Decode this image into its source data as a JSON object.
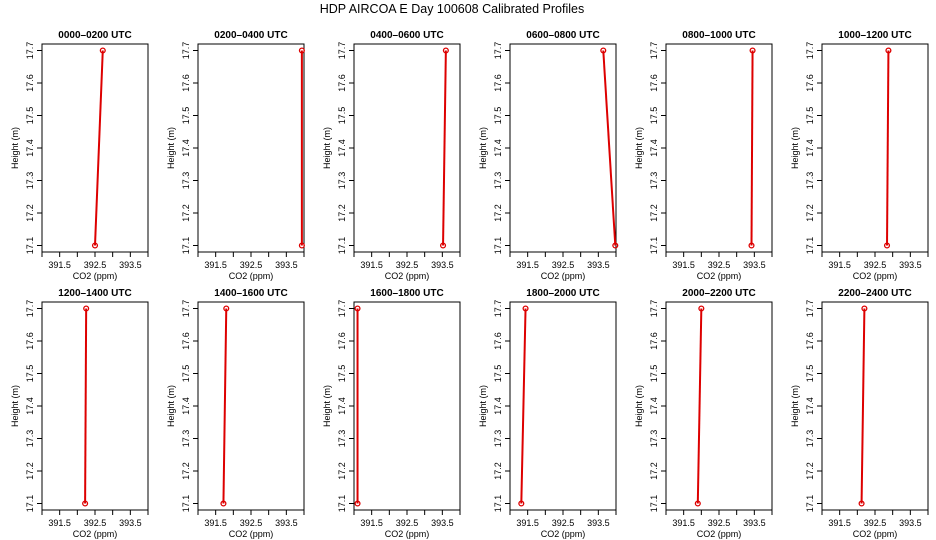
{
  "figure_title": "HDP AIRCOA E  Day 100608  Calibrated Profiles",
  "colors": {
    "profile": "#dd0000",
    "axis": "#000000",
    "background": "#ffffff"
  },
  "chart_data": [
    {
      "type": "line",
      "title": "0000–0200 UTC",
      "xlabel": "CO2 (ppm)",
      "ylabel": "Height (m)",
      "xlim": [
        391.0,
        394.0
      ],
      "ylim": [
        17.08,
        17.72
      ],
      "xticks": [
        "391.5",
        "392.5",
        "393.5"
      ],
      "yticks": [
        "17.1",
        "17.2",
        "17.3",
        "17.4",
        "17.5",
        "17.6",
        "17.7"
      ],
      "points": [
        {
          "x": 392.5,
          "y": 17.1
        },
        {
          "x": 392.72,
          "y": 17.7
        }
      ]
    },
    {
      "type": "line",
      "title": "0200–0400 UTC",
      "xlabel": "CO2 (ppm)",
      "ylabel": "Height (m)",
      "xlim": [
        391.0,
        394.0
      ],
      "ylim": [
        17.08,
        17.72
      ],
      "xticks": [
        "391.5",
        "392.5",
        "393.5"
      ],
      "yticks": [
        "17.1",
        "17.2",
        "17.3",
        "17.4",
        "17.5",
        "17.6",
        "17.7"
      ],
      "points": [
        {
          "x": 393.94,
          "y": 17.1
        },
        {
          "x": 393.94,
          "y": 17.7
        }
      ]
    },
    {
      "type": "line",
      "title": "0400–0600 UTC",
      "xlabel": "CO2 (ppm)",
      "ylabel": "Height (m)",
      "xlim": [
        391.0,
        394.0
      ],
      "ylim": [
        17.08,
        17.72
      ],
      "xticks": [
        "391.5",
        "392.5",
        "393.5"
      ],
      "yticks": [
        "17.1",
        "17.2",
        "17.3",
        "17.4",
        "17.5",
        "17.6",
        "17.7"
      ],
      "points": [
        {
          "x": 393.52,
          "y": 17.1
        },
        {
          "x": 393.6,
          "y": 17.7
        }
      ]
    },
    {
      "type": "line",
      "title": "0600–0800 UTC",
      "xlabel": "CO2 (ppm)",
      "ylabel": "Height (m)",
      "xlim": [
        391.0,
        394.0
      ],
      "ylim": [
        17.08,
        17.72
      ],
      "xticks": [
        "391.5",
        "392.5",
        "393.5"
      ],
      "yticks": [
        "17.1",
        "17.2",
        "17.3",
        "17.4",
        "17.5",
        "17.6",
        "17.7"
      ],
      "points": [
        {
          "x": 393.98,
          "y": 17.1
        },
        {
          "x": 393.64,
          "y": 17.7
        }
      ]
    },
    {
      "type": "line",
      "title": "0800–1000 UTC",
      "xlabel": "CO2 (ppm)",
      "ylabel": "Height (m)",
      "xlim": [
        391.0,
        394.0
      ],
      "ylim": [
        17.08,
        17.72
      ],
      "xticks": [
        "391.5",
        "392.5",
        "393.5"
      ],
      "yticks": [
        "17.1",
        "17.2",
        "17.3",
        "17.4",
        "17.5",
        "17.6",
        "17.7"
      ],
      "points": [
        {
          "x": 393.42,
          "y": 17.1
        },
        {
          "x": 393.45,
          "y": 17.7
        }
      ]
    },
    {
      "type": "line",
      "title": "1000–1200 UTC",
      "xlabel": "CO2 (ppm)",
      "ylabel": "Height (m)",
      "xlim": [
        391.0,
        394.0
      ],
      "ylim": [
        17.08,
        17.72
      ],
      "xticks": [
        "391.5",
        "392.5",
        "393.5"
      ],
      "yticks": [
        "17.1",
        "17.2",
        "17.3",
        "17.4",
        "17.5",
        "17.6",
        "17.7"
      ],
      "points": [
        {
          "x": 392.84,
          "y": 17.1
        },
        {
          "x": 392.88,
          "y": 17.7
        }
      ]
    },
    {
      "type": "line",
      "title": "1200–1400 UTC",
      "xlabel": "CO2 (ppm)",
      "ylabel": "Height (m)",
      "xlim": [
        391.0,
        394.0
      ],
      "ylim": [
        17.08,
        17.72
      ],
      "xticks": [
        "391.5",
        "392.5",
        "393.5"
      ],
      "yticks": [
        "17.1",
        "17.2",
        "17.3",
        "17.4",
        "17.5",
        "17.6",
        "17.7"
      ],
      "points": [
        {
          "x": 392.22,
          "y": 17.1
        },
        {
          "x": 392.25,
          "y": 17.7
        }
      ]
    },
    {
      "type": "line",
      "title": "1400–1600 UTC",
      "xlabel": "CO2 (ppm)",
      "ylabel": "Height (m)",
      "xlim": [
        391.0,
        394.0
      ],
      "ylim": [
        17.08,
        17.72
      ],
      "xticks": [
        "391.5",
        "392.5",
        "393.5"
      ],
      "yticks": [
        "17.1",
        "17.2",
        "17.3",
        "17.4",
        "17.5",
        "17.6",
        "17.7"
      ],
      "points": [
        {
          "x": 391.72,
          "y": 17.1
        },
        {
          "x": 391.8,
          "y": 17.7
        }
      ]
    },
    {
      "type": "line",
      "title": "1600–1800 UTC",
      "xlabel": "CO2 (ppm)",
      "ylabel": "Height (m)",
      "xlim": [
        391.0,
        394.0
      ],
      "ylim": [
        17.08,
        17.72
      ],
      "xticks": [
        "391.5",
        "392.5",
        "393.5"
      ],
      "yticks": [
        "17.1",
        "17.2",
        "17.3",
        "17.4",
        "17.5",
        "17.6",
        "17.7"
      ],
      "points": [
        {
          "x": 391.1,
          "y": 17.1
        },
        {
          "x": 391.1,
          "y": 17.7
        }
      ]
    },
    {
      "type": "line",
      "title": "1800–2000 UTC",
      "xlabel": "CO2 (ppm)",
      "ylabel": "Height (m)",
      "xlim": [
        391.0,
        394.0
      ],
      "ylim": [
        17.08,
        17.72
      ],
      "xticks": [
        "391.5",
        "392.5",
        "393.5"
      ],
      "yticks": [
        "17.1",
        "17.2",
        "17.3",
        "17.4",
        "17.5",
        "17.6",
        "17.7"
      ],
      "points": [
        {
          "x": 391.32,
          "y": 17.1
        },
        {
          "x": 391.44,
          "y": 17.7
        }
      ]
    },
    {
      "type": "line",
      "title": "2000–2200 UTC",
      "xlabel": "CO2 (ppm)",
      "ylabel": "Height (m)",
      "xlim": [
        391.0,
        394.0
      ],
      "ylim": [
        17.08,
        17.72
      ],
      "xticks": [
        "391.5",
        "392.5",
        "393.5"
      ],
      "yticks": [
        "17.1",
        "17.2",
        "17.3",
        "17.4",
        "17.5",
        "17.6",
        "17.7"
      ],
      "points": [
        {
          "x": 391.9,
          "y": 17.1
        },
        {
          "x": 392.0,
          "y": 17.7
        }
      ]
    },
    {
      "type": "line",
      "title": "2200–2400 UTC",
      "xlabel": "CO2 (ppm)",
      "ylabel": "Height (m)",
      "xlim": [
        391.0,
        394.0
      ],
      "ylim": [
        17.08,
        17.72
      ],
      "xticks": [
        "391.5",
        "392.5",
        "393.5"
      ],
      "yticks": [
        "17.1",
        "17.2",
        "17.3",
        "17.4",
        "17.5",
        "17.6",
        "17.7"
      ],
      "points": [
        {
          "x": 392.12,
          "y": 17.1
        },
        {
          "x": 392.2,
          "y": 17.7
        }
      ]
    }
  ]
}
